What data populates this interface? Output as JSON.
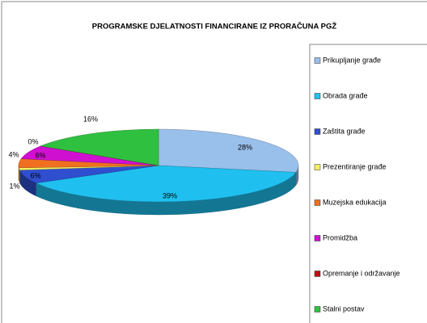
{
  "chart_data": {
    "type": "pie",
    "title": "PROGRAMSKE DJELATNOSTI FINANCIRANE IZ PRORAČUNA PGŽ",
    "categories": [
      "Prikupljanje građe",
      "Obrada građe",
      "Zaštita građe",
      "Prezentiranje građe",
      "Muzejska edukacija",
      "Promidžba",
      "Opremanje i održavanje",
      "Stalni postav"
    ],
    "values": [
      28,
      39,
      6,
      1,
      4,
      6,
      0,
      16
    ],
    "value_labels": [
      "28%",
      "39%",
      "6%",
      "1%",
      "4%",
      "6%",
      "0%",
      "16%"
    ],
    "colors": [
      "#99bfeb",
      "#1fc0ef",
      "#2f4fd0",
      "#f5f060",
      "#f07020",
      "#d010d0",
      "#c01010",
      "#30c040"
    ],
    "legend": "right"
  }
}
